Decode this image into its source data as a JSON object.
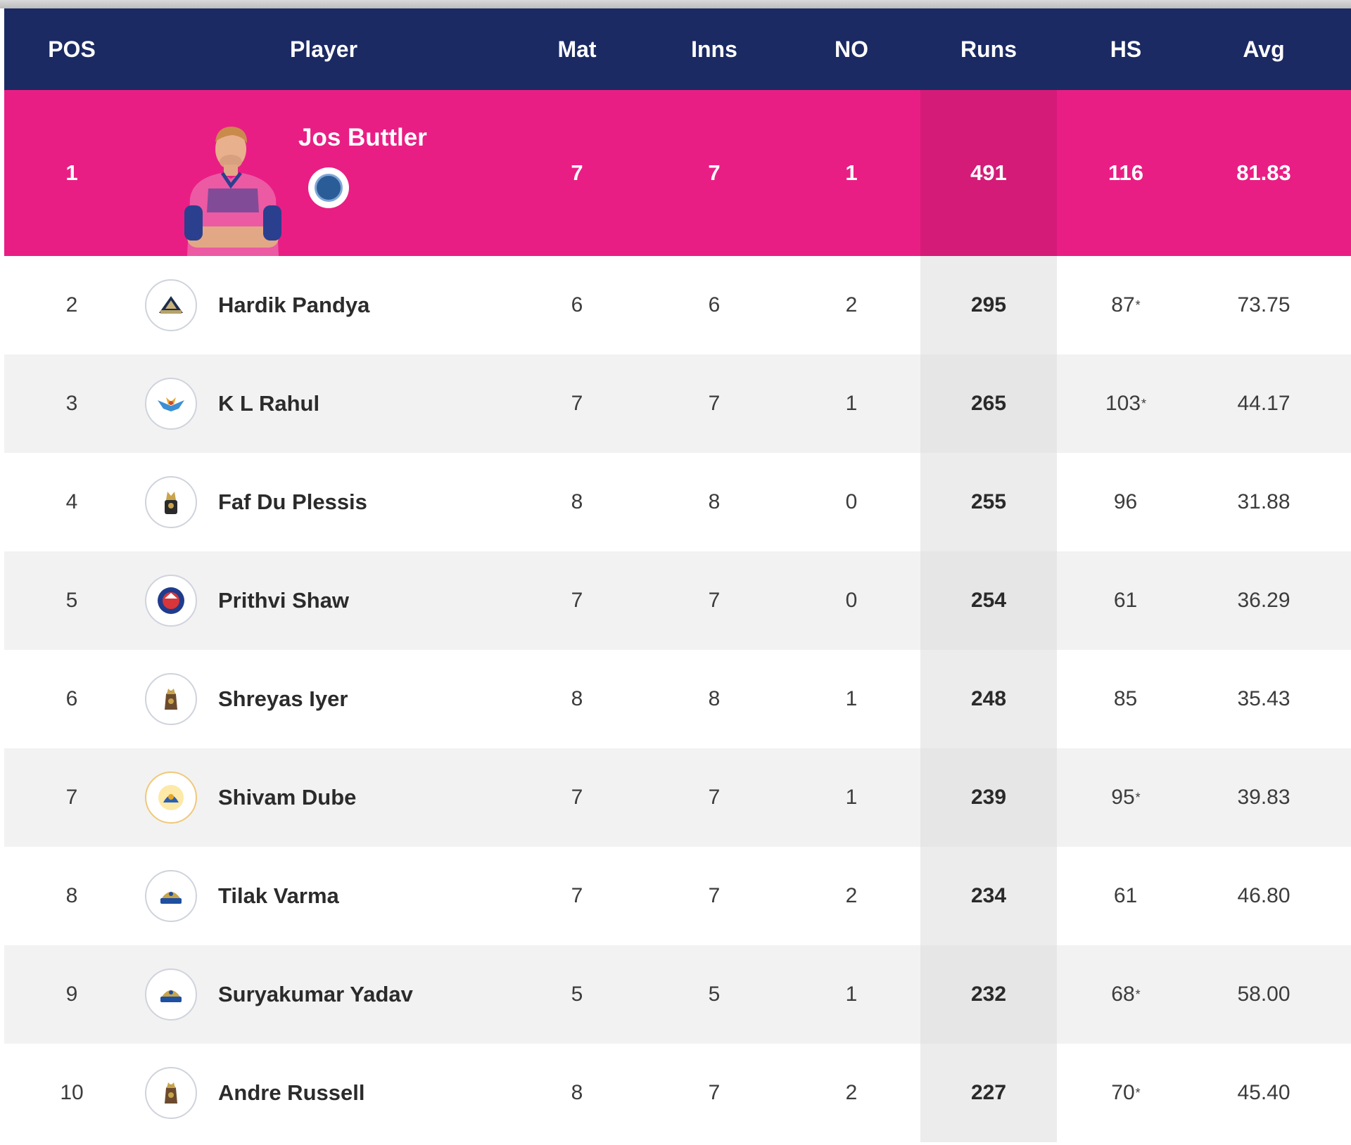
{
  "header": {
    "pos": "POS",
    "player": "Player",
    "mat": "Mat",
    "inns": "Inns",
    "no": "NO",
    "runs": "Runs",
    "hs": "HS",
    "avg": "Avg"
  },
  "featured": {
    "pos": "1",
    "name": "Jos Buttler",
    "mat": "7",
    "inns": "7",
    "no": "1",
    "runs": "491",
    "hs": "116",
    "avg": "81.83",
    "badge_icon": "team-badge-icon"
  },
  "rows": [
    {
      "pos": "2",
      "name": "Hardik Pandya",
      "team_icon": "gt-logo-icon",
      "mat": "6",
      "inns": "6",
      "no": "2",
      "runs": "295",
      "hs": "87",
      "hs_star": "*",
      "avg": "73.75"
    },
    {
      "pos": "3",
      "name": "K L Rahul",
      "team_icon": "lsg-logo-icon",
      "mat": "7",
      "inns": "7",
      "no": "1",
      "runs": "265",
      "hs": "103",
      "hs_star": "*",
      "avg": "44.17"
    },
    {
      "pos": "4",
      "name": "Faf Du Plessis",
      "team_icon": "rcb-logo-icon",
      "mat": "8",
      "inns": "8",
      "no": "0",
      "runs": "255",
      "hs": "96",
      "hs_star": "",
      "avg": "31.88"
    },
    {
      "pos": "5",
      "name": "Prithvi Shaw",
      "team_icon": "dc-logo-icon",
      "mat": "7",
      "inns": "7",
      "no": "0",
      "runs": "254",
      "hs": "61",
      "hs_star": "",
      "avg": "36.29"
    },
    {
      "pos": "6",
      "name": "Shreyas Iyer",
      "team_icon": "kkr-logo-icon",
      "mat": "8",
      "inns": "8",
      "no": "1",
      "runs": "248",
      "hs": "85",
      "hs_star": "",
      "avg": "35.43"
    },
    {
      "pos": "7",
      "name": "Shivam Dube",
      "team_icon": "csk-logo-icon",
      "mat": "7",
      "inns": "7",
      "no": "1",
      "runs": "239",
      "hs": "95",
      "hs_star": "*",
      "avg": "39.83"
    },
    {
      "pos": "8",
      "name": "Tilak Varma",
      "team_icon": "mi-logo-icon",
      "mat": "7",
      "inns": "7",
      "no": "2",
      "runs": "234",
      "hs": "61",
      "hs_star": "",
      "avg": "46.80"
    },
    {
      "pos": "9",
      "name": "Suryakumar Yadav",
      "team_icon": "mi-logo-icon",
      "mat": "5",
      "inns": "5",
      "no": "1",
      "runs": "232",
      "hs": "68",
      "hs_star": "*",
      "avg": "58.00"
    },
    {
      "pos": "10",
      "name": "Andre Russell",
      "team_icon": "kkr-logo-icon",
      "mat": "8",
      "inns": "7",
      "no": "2",
      "runs": "227",
      "hs": "70",
      "hs_star": "*",
      "avg": "45.40"
    }
  ],
  "colors": {
    "header_bg": "#1b2a63",
    "featured_bg": "#e91e84",
    "row_alt_bg": "#f2f2f2"
  }
}
